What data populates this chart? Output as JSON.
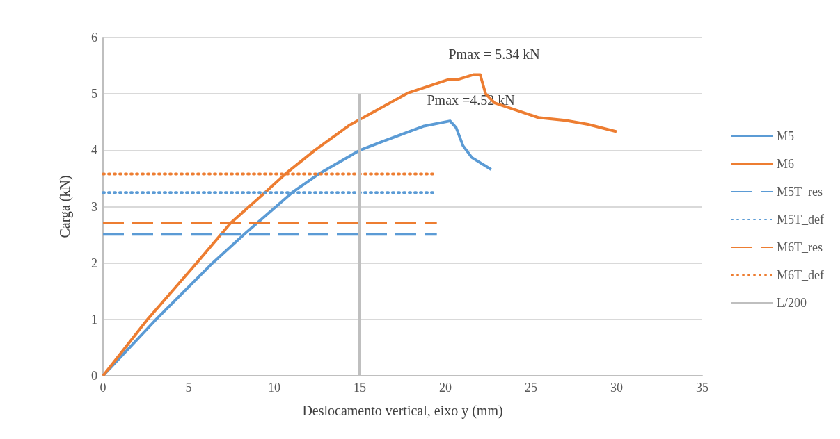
{
  "chart_data": {
    "type": "line",
    "xlabel": "Deslocamento vertical, eixo y (mm)",
    "ylabel": "Carga (kN)",
    "xlim": [
      0,
      35
    ],
    "xticks": [
      0,
      5,
      10,
      15,
      20,
      25,
      30,
      35
    ],
    "ylim": [
      0,
      6
    ],
    "yticks": [
      0,
      1,
      2,
      3,
      4,
      5,
      6
    ],
    "grid": "y",
    "legend": "right",
    "marker": "none",
    "series": [
      {
        "name": "M5",
        "color": "#5b9bd5",
        "line_style": "solid",
        "x": [
          0,
          3.1,
          6.4,
          8.25,
          11.05,
          12.6,
          15,
          16.36,
          18.76,
          20.27,
          20.63,
          21.03,
          21.55,
          22.67
        ],
        "values": [
          0,
          1,
          2,
          2.51,
          3.25,
          3.58,
          4,
          4.16,
          4.43,
          4.52,
          4.4,
          4.08,
          3.87,
          3.66
        ]
      },
      {
        "name": "M6",
        "color": "#ed7d31",
        "line_style": "solid",
        "x": [
          0,
          2.6,
          5.47,
          7.46,
          9.46,
          10.65,
          12.37,
          14.37,
          17.84,
          20.23,
          20.67,
          21.63,
          22.03,
          22.35,
          22.87,
          25.42,
          27,
          28.33,
          30
        ],
        "values": [
          0,
          1,
          2,
          2.71,
          3.25,
          3.58,
          4,
          4.44,
          5.02,
          5.26,
          5.25,
          5.34,
          5.34,
          5,
          4.84,
          4.58,
          4.53,
          4.46,
          4.33
        ]
      },
      {
        "name": "M5T_res",
        "color": "#5b9bd5",
        "line_style": "dashed",
        "x": [
          0,
          19.5
        ],
        "values": [
          2.51,
          2.51
        ]
      },
      {
        "name": "M5T_def",
        "color": "#5b9bd5",
        "line_style": "dotted",
        "x": [
          0,
          19.5
        ],
        "values": [
          3.25,
          3.25
        ]
      },
      {
        "name": "M6T_res",
        "color": "#ed7d31",
        "line_style": "dashed",
        "x": [
          0,
          19.5
        ],
        "values": [
          2.71,
          2.71
        ]
      },
      {
        "name": "M6T_def",
        "color": "#ed7d31",
        "line_style": "dotted",
        "x": [
          0,
          19.5
        ],
        "values": [
          3.58,
          3.58
        ]
      },
      {
        "name": "L/200",
        "color": "#bfbfbf",
        "line_style": "solid",
        "x": [
          15,
          15
        ],
        "values": [
          0,
          5
        ]
      }
    ],
    "annotations": [
      {
        "text": "Pmax = 5.34 kN",
        "x": 21.63,
        "y": 5.34
      },
      {
        "text": "Pmax =4.52 kN",
        "x": 20.27,
        "y": 4.52
      }
    ]
  }
}
